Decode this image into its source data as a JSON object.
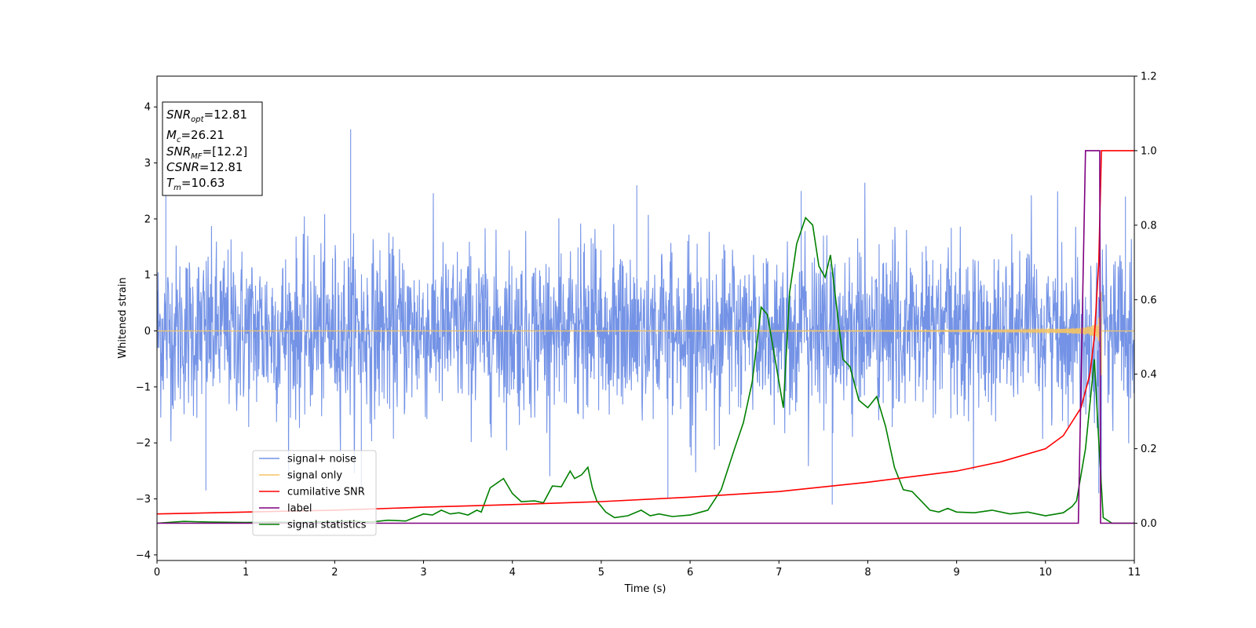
{
  "chart_data": {
    "type": "line",
    "xlabel": "Time (s)",
    "ylabel": "Whitened strain",
    "ylabel_right": "",
    "xlim": [
      0,
      11
    ],
    "ylim": [
      -4.1,
      4.55
    ],
    "ylim_right": [
      -0.1,
      1.2
    ],
    "x_ticks": [
      "0",
      "1",
      "2",
      "3",
      "4",
      "5",
      "6",
      "7",
      "8",
      "9",
      "10",
      "11"
    ],
    "y_ticks": [
      "−4",
      "−3",
      "−2",
      "−1",
      "0",
      "1",
      "2",
      "3",
      "4"
    ],
    "y_ticks_right": [
      "0.0",
      "0.2",
      "0.4",
      "0.6",
      "0.8",
      "1.0",
      "1.2"
    ],
    "grid": false,
    "legend_position": "lower-left",
    "info_box": {
      "snr_opt": "12.81",
      "mc": "26.21",
      "snr_mf": "[12.2]",
      "csnr": "12.81",
      "tm": "10.63"
    },
    "series": [
      {
        "name": "signal+ noise",
        "color": "#7493e6",
        "axis": "left",
        "noise_std": 0.75,
        "peaks": [
          [
            2.18,
            3.6
          ],
          [
            0.1,
            2.5
          ],
          [
            5.4,
            2.6
          ],
          [
            7.25,
            2.5
          ],
          [
            10.9,
            2.4
          ],
          [
            10.6,
            -2.9
          ],
          [
            7.6,
            -3.1
          ],
          [
            5.75,
            -3.0
          ],
          [
            0.55,
            -2.85
          ],
          [
            2.3,
            -2.8
          ]
        ]
      },
      {
        "name": "signal only",
        "color": "#f5c464",
        "axis": "left",
        "merger_time": 10.63,
        "max_amplitude": 2.3
      },
      {
        "name": "cumilative SNR",
        "color": "#ff0000",
        "axis": "right",
        "x": [
          0,
          1,
          2,
          3,
          4,
          5,
          6,
          7,
          8,
          9,
          9.5,
          10,
          10.2,
          10.4,
          10.5,
          10.55,
          10.6,
          10.63,
          11
        ],
        "values": [
          0.025,
          0.03,
          0.035,
          0.043,
          0.05,
          0.058,
          0.07,
          0.085,
          0.11,
          0.14,
          0.165,
          0.2,
          0.235,
          0.31,
          0.4,
          0.5,
          0.7,
          1.0,
          1.0
        ]
      },
      {
        "name": "label",
        "color": "#800080",
        "axis": "right",
        "x": [
          0,
          10.37,
          10.45,
          10.61,
          10.62,
          10.68,
          11
        ],
        "values": [
          0,
          0,
          1,
          1,
          0,
          0,
          0
        ]
      },
      {
        "name": "signal statistics",
        "color": "#008000",
        "axis": "right",
        "x": [
          0,
          0.3,
          0.6,
          1.0,
          1.3,
          1.6,
          1.9,
          2.2,
          2.4,
          2.6,
          2.8,
          3.0,
          3.1,
          3.2,
          3.3,
          3.4,
          3.5,
          3.6,
          3.65,
          3.75,
          3.9,
          4.0,
          4.1,
          4.25,
          4.35,
          4.45,
          4.55,
          4.65,
          4.7,
          4.78,
          4.85,
          4.9,
          4.95,
          5.05,
          5.15,
          5.3,
          5.45,
          5.55,
          5.65,
          5.8,
          6.0,
          6.2,
          6.35,
          6.5,
          6.6,
          6.7,
          6.8,
          6.87,
          6.95,
          7.05,
          7.12,
          7.2,
          7.3,
          7.38,
          7.45,
          7.52,
          7.58,
          7.65,
          7.72,
          7.8,
          7.9,
          8.0,
          8.1,
          8.2,
          8.3,
          8.4,
          8.5,
          8.6,
          8.7,
          8.8,
          8.9,
          9.0,
          9.2,
          9.4,
          9.6,
          9.8,
          10.0,
          10.2,
          10.3,
          10.35,
          10.45,
          10.55,
          10.6,
          10.65,
          10.75,
          11.0
        ],
        "values": [
          0.0,
          0.005,
          0.003,
          0.002,
          0.003,
          0.002,
          0.004,
          0.006,
          0.003,
          0.008,
          0.006,
          0.025,
          0.022,
          0.035,
          0.025,
          0.028,
          0.022,
          0.035,
          0.03,
          0.095,
          0.12,
          0.08,
          0.058,
          0.06,
          0.055,
          0.1,
          0.098,
          0.14,
          0.12,
          0.13,
          0.15,
          0.095,
          0.06,
          0.03,
          0.015,
          0.02,
          0.035,
          0.02,
          0.025,
          0.018,
          0.022,
          0.035,
          0.09,
          0.2,
          0.27,
          0.38,
          0.58,
          0.56,
          0.45,
          0.31,
          0.62,
          0.75,
          0.82,
          0.8,
          0.69,
          0.66,
          0.72,
          0.58,
          0.44,
          0.42,
          0.33,
          0.31,
          0.34,
          0.26,
          0.15,
          0.09,
          0.085,
          0.06,
          0.035,
          0.03,
          0.04,
          0.03,
          0.028,
          0.035,
          0.025,
          0.03,
          0.02,
          0.028,
          0.045,
          0.06,
          0.2,
          0.44,
          0.22,
          0.015,
          0.0,
          0.0
        ]
      }
    ]
  }
}
